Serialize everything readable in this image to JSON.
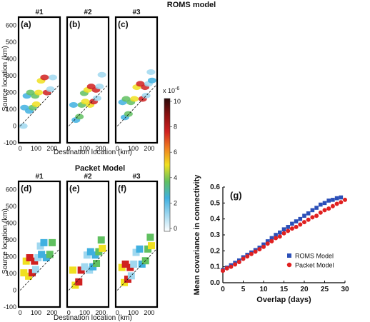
{
  "roms": {
    "title": "ROMS model",
    "panel_numbers": [
      "#1",
      "#2",
      "#3"
    ],
    "panel_letters": [
      "(a)",
      "(b)",
      "(c)"
    ],
    "xlabel": "Destination location (km)",
    "ylabel": "Source location (km)",
    "yticks": [
      "600",
      "500",
      "400",
      "300",
      "200",
      "100",
      "0",
      "-100"
    ],
    "xticks": [
      "0",
      "100",
      "200"
    ]
  },
  "packet": {
    "title": "Packet Model",
    "panel_numbers": [
      "#1",
      "#2",
      "#3"
    ],
    "panel_letters": [
      "(d)",
      "(e)",
      "(f)"
    ],
    "xlabel": "Destination location (km)",
    "ylabel": "Source location (km)",
    "yticks": [
      "600",
      "500",
      "400",
      "300",
      "200",
      "100",
      "0",
      "-100"
    ],
    "xticks": [
      "0",
      "100",
      "200"
    ]
  },
  "colorbar": {
    "scale_label": "x 10",
    "scale_exp": "-6",
    "ticks": [
      "10",
      "8",
      "6",
      "4",
      "2",
      "0"
    ],
    "colors": [
      "#2b0a0a",
      "#8b1010",
      "#d02020",
      "#f08020",
      "#f0e020",
      "#60c060",
      "#40b0e0",
      "#a0d8f0",
      "#ffffff"
    ]
  },
  "chart_data": {
    "type": "scatter",
    "panel_label": "(g)",
    "xlabel": "Overlap (days)",
    "ylabel": "Mean covariance in connectivity",
    "xlim": [
      0,
      30
    ],
    "ylim": [
      0,
      0.6
    ],
    "xticks": [
      0,
      5,
      10,
      15,
      20,
      25,
      30
    ],
    "yticks": [
      0,
      0.1,
      0.2,
      0.3,
      0.4,
      0.5,
      0.6
    ],
    "legend_position": "bottom-right",
    "series": [
      {
        "name": "ROMS Model",
        "color": "#2b4fb8",
        "marker": "square",
        "x": [
          0,
          1,
          2,
          3,
          4,
          5,
          6,
          7,
          8,
          9,
          10,
          11,
          12,
          13,
          14,
          15,
          16,
          17,
          18,
          19,
          20,
          21,
          22,
          23,
          24,
          25,
          26,
          27,
          28,
          29
        ],
        "y": [
          0.08,
          0.095,
          0.11,
          0.125,
          0.14,
          0.16,
          0.175,
          0.19,
          0.205,
          0.22,
          0.24,
          0.26,
          0.28,
          0.3,
          0.315,
          0.335,
          0.35,
          0.37,
          0.385,
          0.4,
          0.42,
          0.435,
          0.455,
          0.47,
          0.49,
          0.5,
          0.515,
          0.52,
          0.53,
          0.535
        ]
      },
      {
        "name": "Packet Model",
        "color": "#e02020",
        "marker": "circle",
        "x": [
          0,
          1,
          2,
          3,
          4,
          5,
          6,
          7,
          8,
          9,
          10,
          11,
          12,
          13,
          14,
          15,
          16,
          17,
          18,
          19,
          20,
          21,
          22,
          23,
          24,
          25,
          26,
          27,
          28,
          29,
          30
        ],
        "y": [
          0.075,
          0.09,
          0.1,
          0.115,
          0.13,
          0.15,
          0.165,
          0.18,
          0.195,
          0.21,
          0.225,
          0.245,
          0.26,
          0.28,
          0.29,
          0.31,
          0.325,
          0.34,
          0.35,
          0.365,
          0.38,
          0.395,
          0.41,
          0.42,
          0.44,
          0.455,
          0.465,
          0.48,
          0.495,
          0.505,
          0.52
        ]
      }
    ]
  }
}
